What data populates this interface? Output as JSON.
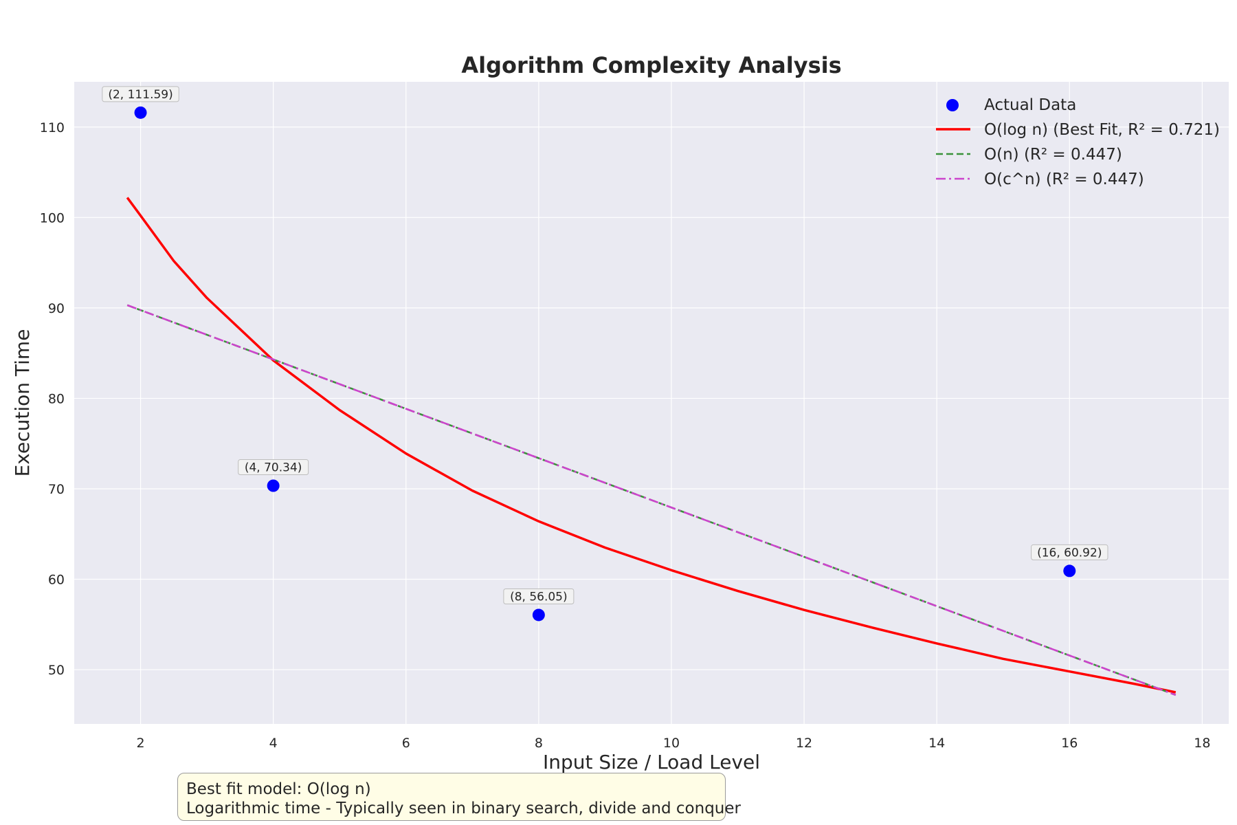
{
  "chart_data": {
    "type": "scatter",
    "title": "Algorithm Complexity Analysis",
    "xlabel": "Input Size / Load Level",
    "ylabel": "Execution Time",
    "xlim": [
      1.0,
      18.4
    ],
    "ylim": [
      44.0,
      115.0
    ],
    "xticks": [
      2,
      4,
      6,
      8,
      10,
      12,
      14,
      16,
      18
    ],
    "yticks": [
      50,
      60,
      70,
      80,
      90,
      100,
      110
    ],
    "grid": true,
    "legend_position": "top-right",
    "points": [
      {
        "x": 2,
        "y": 111.59,
        "label": "(2, 111.59)"
      },
      {
        "x": 4,
        "y": 70.34,
        "label": "(4, 70.34)"
      },
      {
        "x": 8,
        "y": 56.05,
        "label": "(8, 56.05)"
      },
      {
        "x": 16,
        "y": 60.92,
        "label": "(16, 60.92)"
      }
    ],
    "series": [
      {
        "name": "Actual Data",
        "kind": "scatter",
        "color": "#0000ff"
      },
      {
        "name": "O(log n) (Best Fit, R² = 0.721)",
        "kind": "line",
        "style": "solid",
        "color": "#ff0000",
        "x": [
          1.8,
          2,
          2.5,
          3,
          4,
          5,
          6,
          7,
          8,
          9,
          10,
          11,
          12,
          13,
          14,
          15,
          16,
          17,
          17.6
        ],
        "y": [
          102.2,
          100.2,
          95.2,
          91.1,
          84.2,
          78.7,
          73.9,
          69.8,
          66.4,
          63.5,
          61.0,
          58.7,
          56.6,
          54.7,
          52.9,
          51.2,
          49.8,
          48.4,
          47.5
        ]
      },
      {
        "name": "O(n) (R² = 0.447)",
        "kind": "line",
        "style": "dashed",
        "color": "#3a923a",
        "x": [
          1.8,
          17.6
        ],
        "y": [
          90.3,
          47.2
        ]
      },
      {
        "name": "O(c^n) (R² = 0.447)",
        "kind": "line",
        "style": "dashdot",
        "color": "#cc44cc",
        "x": [
          1.8,
          17.6
        ],
        "y": [
          90.3,
          47.2
        ]
      }
    ]
  },
  "note": {
    "line1": "Best fit model: O(log n)",
    "line2": "Logarithmic time - Typically seen in binary search, divide and conquer"
  }
}
